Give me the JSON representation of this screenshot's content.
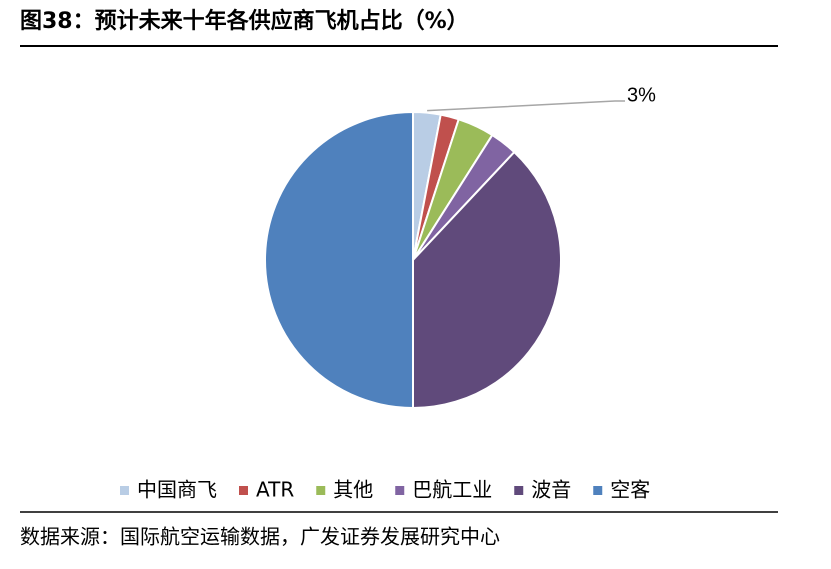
{
  "chart_data": {
    "type": "pie",
    "title": "图38：预计未来十年各供应商飞机占比（%）",
    "categories": [
      "中国商飞",
      "ATR",
      "其他",
      "巴航工业",
      "波音",
      "空客"
    ],
    "values": [
      3,
      2,
      4,
      3,
      38,
      50
    ],
    "value_labels": [
      "3%",
      null,
      null,
      null,
      null,
      null
    ],
    "colors": [
      "#b9cde5",
      "#c0504d",
      "#9bbb59",
      "#8064a2",
      "#604a7b",
      "#4f81bd"
    ],
    "legend": "bottom",
    "source": "数据来源：国际航空运输数据，广发证券发展研究中心"
  }
}
